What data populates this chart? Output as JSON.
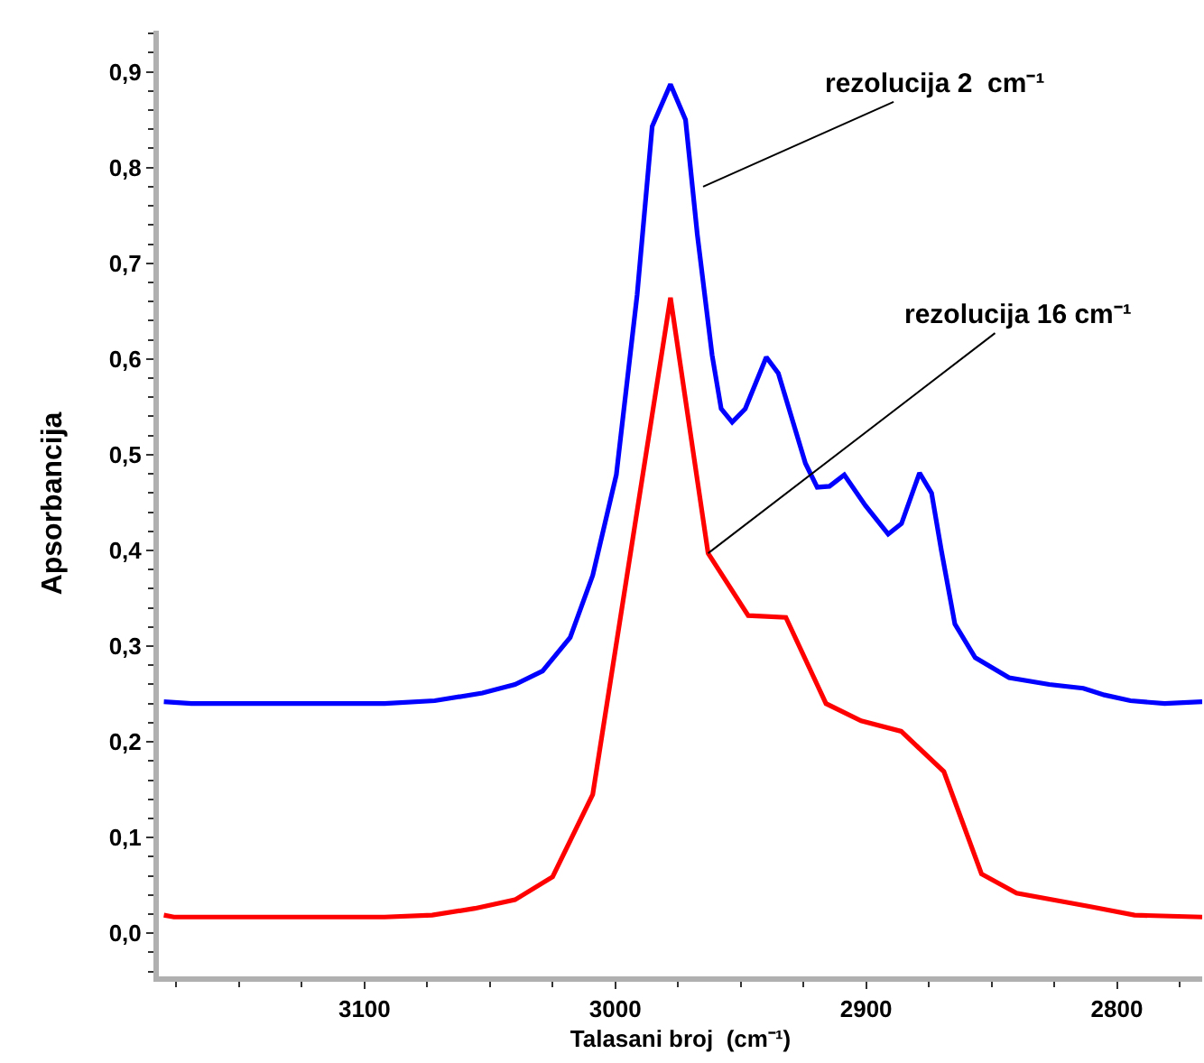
{
  "chart_data": {
    "type": "line",
    "xlabel": "Talasani broj  (cm⁻¹)",
    "ylabel": "Apsorbancija",
    "xlim": [
      3182,
      2766
    ],
    "ylim": [
      -0.045,
      0.943
    ],
    "xticks": [
      3100,
      3000,
      2900,
      2800
    ],
    "yticks": [
      {
        "value": 0,
        "label": "0,0"
      },
      {
        "value": 0.1,
        "label": "0,1"
      },
      {
        "value": 0.2,
        "label": "0,2"
      },
      {
        "value": 0.3,
        "label": "0,3"
      },
      {
        "value": 0.4,
        "label": "0,4"
      },
      {
        "value": 0.5,
        "label": "0,5"
      },
      {
        "value": 0.6,
        "label": "0,6"
      },
      {
        "value": 0.7,
        "label": "0,7"
      },
      {
        "value": 0.8,
        "label": "0,8"
      },
      {
        "value": 0.9,
        "label": "0,9"
      }
    ],
    "grid": false,
    "marker": "none",
    "line_style": "solid",
    "series": [
      {
        "color": "#0000ff",
        "x": [
          3180,
          3169,
          3092,
          3072,
          3053,
          3040,
          3029,
          3018,
          3009,
          2999.6,
          2991.3,
          2985.3,
          2978,
          2972,
          2967.3,
          2961.4,
          2957.8,
          2953.4,
          2948.2,
          2939.8,
          2935,
          2924.2,
          2919.5,
          2914.6,
          2908.7,
          2900.3,
          2891.2,
          2885.9,
          2878.7,
          2873.9,
          2870,
          2864.6,
          2856.5,
          2843,
          2827,
          2813.4,
          2805,
          2794.6,
          2781,
          2766
        ],
        "values": [
          0.242,
          0.24,
          0.24,
          0.243,
          0.251,
          0.26,
          0.274,
          0.309,
          0.374,
          0.479,
          0.667,
          0.843,
          0.887,
          0.85,
          0.73,
          0.604,
          0.548,
          0.534,
          0.548,
          0.602,
          0.585,
          0.491,
          0.466,
          0.467,
          0.479,
          0.447,
          0.417,
          0.428,
          0.481,
          0.46,
          0.4,
          0.323,
          0.288,
          0.267,
          0.26,
          0.256,
          0.249,
          0.243,
          0.24,
          0.242
        ]
      },
      {
        "color": "#ff0000",
        "x": [
          3180,
          3176,
          3092,
          3073,
          3056,
          3040,
          3025,
          3009,
          2978,
          2963,
          2947,
          2932,
          2916,
          2902,
          2886,
          2869,
          2854,
          2840,
          2811,
          2793,
          2766
        ],
        "values": [
          0.019,
          0.017,
          0.017,
          0.019,
          0.026,
          0.035,
          0.059,
          0.145,
          0.664,
          0.397,
          0.332,
          0.33,
          0.24,
          0.222,
          0.211,
          0.169,
          0.062,
          0.042,
          0.028,
          0.019,
          0.017
        ]
      }
    ],
    "annotations": [
      {
        "text": "rezolucija 2  cm⁻¹",
        "x": 2965,
        "y": 0.78
      },
      {
        "text": "rezolucija 16 cm⁻¹",
        "x": 2963,
        "y": 0.397
      }
    ]
  }
}
